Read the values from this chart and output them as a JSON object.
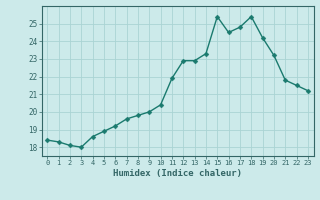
{
  "x": [
    0,
    1,
    2,
    3,
    4,
    5,
    6,
    7,
    8,
    9,
    10,
    11,
    12,
    13,
    14,
    15,
    16,
    17,
    18,
    19,
    20,
    21,
    22,
    23
  ],
  "y": [
    18.4,
    18.3,
    18.1,
    18.0,
    18.6,
    18.9,
    19.2,
    19.6,
    19.8,
    20.0,
    20.4,
    21.9,
    22.9,
    22.9,
    23.3,
    25.4,
    24.5,
    24.8,
    25.4,
    24.2,
    23.2,
    21.8,
    21.5,
    21.2
  ],
  "line_color": "#1a7a6e",
  "marker_color": "#1a7a6e",
  "bg_color": "#cceaea",
  "grid_color": "#aad4d4",
  "axis_color": "#336666",
  "xlabel": "Humidex (Indice chaleur)",
  "ylim": [
    17.5,
    26.0
  ],
  "xlim": [
    -0.5,
    23.5
  ],
  "yticks": [
    18,
    19,
    20,
    21,
    22,
    23,
    24,
    25
  ],
  "xticks": [
    0,
    1,
    2,
    3,
    4,
    5,
    6,
    7,
    8,
    9,
    10,
    11,
    12,
    13,
    14,
    15,
    16,
    17,
    18,
    19,
    20,
    21,
    22,
    23
  ],
  "font_color": "#336666",
  "marker_size": 2.5,
  "line_width": 1.0
}
